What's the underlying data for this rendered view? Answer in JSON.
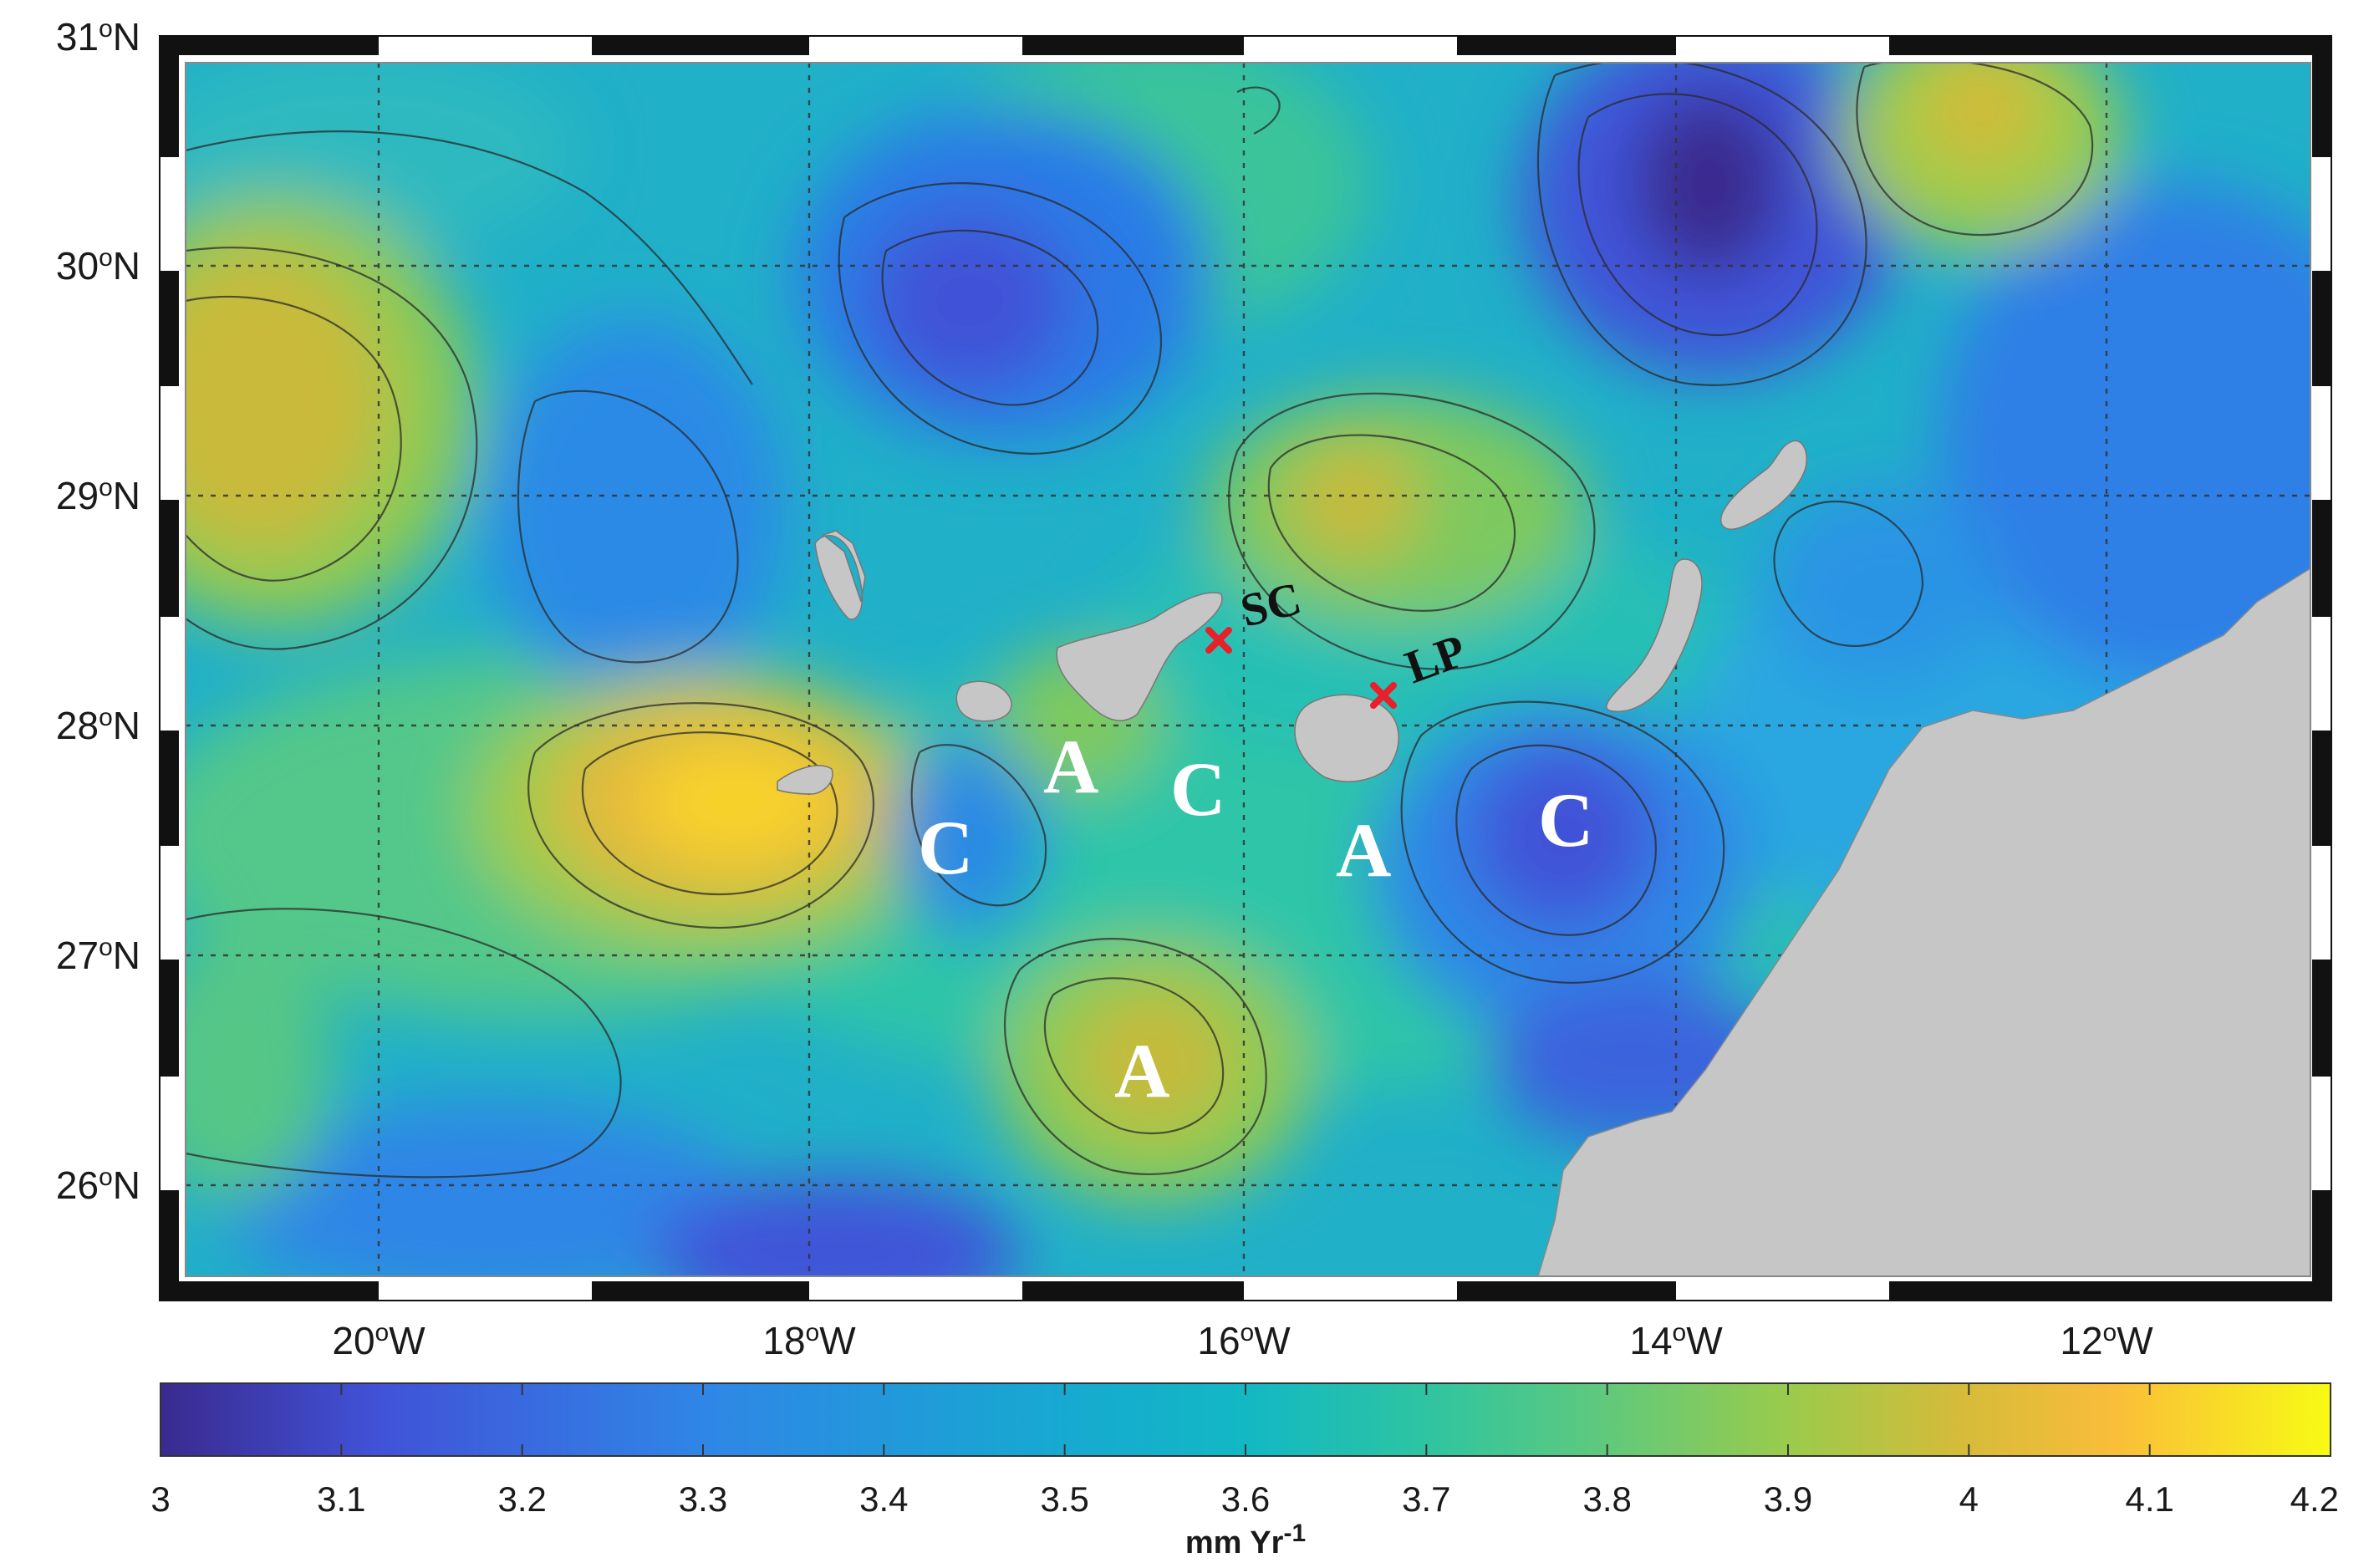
{
  "map": {
    "lat_ticks": [
      {
        "deg": "31",
        "sup": "o",
        "hemi": "N"
      },
      {
        "deg": "30",
        "sup": "o",
        "hemi": "N"
      },
      {
        "deg": "29",
        "sup": "o",
        "hemi": "N"
      },
      {
        "deg": "28",
        "sup": "o",
        "hemi": "N"
      },
      {
        "deg": "27",
        "sup": "o",
        "hemi": "N"
      },
      {
        "deg": "26",
        "sup": "o",
        "hemi": "N"
      }
    ],
    "lon_ticks": [
      {
        "deg": "20",
        "sup": "o",
        "hemi": "W"
      },
      {
        "deg": "18",
        "sup": "o",
        "hemi": "W"
      },
      {
        "deg": "16",
        "sup": "o",
        "hemi": "W"
      },
      {
        "deg": "14",
        "sup": "o",
        "hemi": "W"
      },
      {
        "deg": "12",
        "sup": "o",
        "hemi": "W"
      }
    ],
    "eddies": [
      {
        "label": "A",
        "type": "anticyclone"
      },
      {
        "label": "C",
        "type": "cyclone"
      },
      {
        "label": "C",
        "type": "cyclone"
      },
      {
        "label": "A",
        "type": "anticyclone"
      },
      {
        "label": "C",
        "type": "cyclone"
      },
      {
        "label": "A",
        "type": "anticyclone"
      }
    ],
    "sites": [
      {
        "label": "SC",
        "marker": "red-x",
        "color": "#e8202a"
      },
      {
        "label": "LP",
        "marker": "red-x",
        "color": "#e8202a"
      }
    ],
    "land_color": "#c6c6c6"
  },
  "colorbar": {
    "ticks": [
      "3",
      "3.1",
      "3.2",
      "3.3",
      "3.4",
      "3.5",
      "3.6",
      "3.7",
      "3.8",
      "3.9",
      "4",
      "4.1",
      "4.2"
    ],
    "range": [
      3,
      4.2
    ],
    "unit_main": "mm Yr",
    "unit_sup": "-1",
    "colors": [
      "#3a2a8e",
      "#4152d8",
      "#2f86e6",
      "#16aad0",
      "#1dbfb2",
      "#4cc98a",
      "#9acb4c",
      "#d6bb3a",
      "#f9bd3a",
      "#f8fa14"
    ]
  }
}
